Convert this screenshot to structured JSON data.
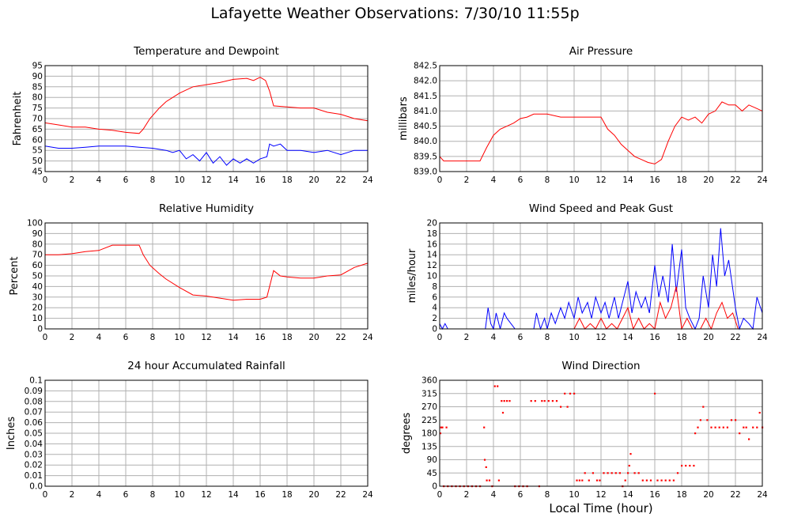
{
  "page": {
    "title": "Lafayette Weather Observations: 7/30/10 11:55p",
    "x_axis_title": "Local Time (hour)"
  },
  "colors": {
    "series_a": "#ff0000",
    "series_b": "#0000ff",
    "grid": "#b0b0b0",
    "frame": "#000000"
  },
  "chart_data": [
    {
      "type": "line",
      "title": "Temperature and Dewpoint",
      "ylabel": "Fahrenheit",
      "xlim": [
        0,
        24
      ],
      "ylim": [
        45,
        95
      ],
      "x_ticks": [
        "0",
        "2",
        "4",
        "6",
        "8",
        "10",
        "12",
        "14",
        "16",
        "18",
        "20",
        "22",
        "24"
      ],
      "y_ticks": [
        "45",
        "50",
        "55",
        "60",
        "65",
        "70",
        "75",
        "80",
        "85",
        "90",
        "95"
      ],
      "grid": true,
      "series": [
        {
          "color": "#ff0000",
          "x": [
            0,
            1,
            2,
            3,
            4,
            5,
            6,
            7,
            7.3,
            7.8,
            8.5,
            9,
            10,
            11,
            12,
            13,
            14,
            15,
            15.5,
            16,
            16.4,
            16.7,
            17,
            18,
            19,
            20,
            21,
            22,
            23,
            24
          ],
          "y": [
            68,
            67,
            66,
            66,
            65,
            64.5,
            63.5,
            63,
            65,
            70,
            75,
            78,
            82,
            85,
            86,
            87,
            88.5,
            89,
            88,
            89.5,
            88,
            83,
            76,
            75.5,
            75,
            75,
            73,
            72,
            70,
            69
          ]
        },
        {
          "color": "#0000ff",
          "x": [
            0,
            1,
            2,
            3,
            4,
            5,
            6,
            7,
            8,
            9,
            9.5,
            10,
            10.5,
            11,
            11.5,
            12,
            12.5,
            13,
            13.5,
            14,
            14.5,
            15,
            15.5,
            16,
            16.5,
            16.7,
            17,
            17.5,
            18,
            19,
            20,
            21,
            22,
            23,
            24
          ],
          "y": [
            57,
            56,
            56,
            56.5,
            57,
            57,
            57,
            56.5,
            56,
            55,
            54,
            55,
            51,
            53,
            50,
            54,
            49,
            52,
            48,
            51,
            49,
            51,
            49,
            51,
            52,
            58,
            57,
            58,
            55,
            55,
            54,
            55,
            53,
            55,
            55
          ]
        }
      ]
    },
    {
      "type": "line",
      "title": "Air Pressure",
      "ylabel": "millibars",
      "xlim": [
        0,
        24
      ],
      "ylim": [
        839.0,
        842.5
      ],
      "x_ticks": [
        "0",
        "2",
        "4",
        "6",
        "8",
        "10",
        "12",
        "14",
        "16",
        "18",
        "20",
        "22",
        "24"
      ],
      "y_ticks": [
        "839.0",
        "839.5",
        "840.0",
        "840.5",
        "841.0",
        "841.5",
        "842.0",
        "842.5"
      ],
      "grid": true,
      "series": [
        {
          "color": "#ff0000",
          "x": [
            0,
            0.3,
            1,
            2,
            3,
            3.5,
            4,
            4.5,
            5,
            5.5,
            6,
            6.5,
            7,
            8,
            9,
            10,
            11,
            12,
            12.5,
            13,
            13.5,
            14,
            14.5,
            15,
            15.5,
            16,
            16.5,
            17,
            17.5,
            18,
            18.5,
            19,
            19.5,
            20,
            20.5,
            21,
            21.5,
            22,
            22.5,
            23,
            23.5,
            24
          ],
          "y": [
            839.5,
            839.35,
            839.35,
            839.35,
            839.35,
            839.8,
            840.2,
            840.4,
            840.5,
            840.6,
            840.75,
            840.8,
            840.9,
            840.9,
            840.8,
            840.8,
            840.8,
            840.8,
            840.4,
            840.2,
            839.9,
            839.7,
            839.5,
            839.4,
            839.3,
            839.25,
            839.4,
            840.0,
            840.5,
            840.8,
            840.7,
            840.8,
            840.6,
            840.9,
            841.0,
            841.3,
            841.2,
            841.2,
            841.0,
            841.2,
            841.1,
            841.0
          ]
        }
      ]
    },
    {
      "type": "line",
      "title": "Relative Humidity",
      "ylabel": "Percent",
      "xlim": [
        0,
        24
      ],
      "ylim": [
        0,
        100
      ],
      "x_ticks": [
        "0",
        "2",
        "4",
        "6",
        "8",
        "10",
        "12",
        "14",
        "16",
        "18",
        "20",
        "22",
        "24"
      ],
      "y_ticks": [
        "0",
        "10",
        "20",
        "30",
        "40",
        "50",
        "60",
        "70",
        "80",
        "90",
        "100"
      ],
      "grid": true,
      "series": [
        {
          "color": "#ff0000",
          "x": [
            0,
            1,
            2,
            3,
            4,
            5,
            6,
            7,
            7.3,
            7.8,
            8.5,
            9,
            10,
            11,
            12,
            13,
            14,
            15,
            16,
            16.5,
            16.8,
            17,
            17.5,
            18,
            19,
            20,
            21,
            22,
            23,
            24
          ],
          "y": [
            70,
            70,
            71,
            73,
            74,
            79,
            79,
            79,
            70,
            60,
            52,
            47,
            39,
            32,
            31,
            29,
            27,
            28,
            28,
            30,
            45,
            55,
            50,
            49,
            48,
            48,
            50,
            51,
            58,
            62
          ]
        }
      ]
    },
    {
      "type": "line",
      "title": "Wind Speed and Peak Gust",
      "ylabel": "miles/hour",
      "xlim": [
        0,
        24
      ],
      "ylim": [
        0,
        20
      ],
      "x_ticks": [
        "0",
        "2",
        "4",
        "6",
        "8",
        "10",
        "12",
        "14",
        "16",
        "18",
        "20",
        "22",
        "24"
      ],
      "y_ticks": [
        "0",
        "2",
        "4",
        "6",
        "8",
        "10",
        "12",
        "14",
        "16",
        "18",
        "20"
      ],
      "grid": true,
      "series": [
        {
          "color": "#0000ff",
          "x": [
            0,
            0.2,
            0.4,
            0.6,
            1,
            2,
            3,
            3.4,
            3.6,
            3.8,
            4,
            4.2,
            4.5,
            4.8,
            5,
            5.3,
            5.6,
            6,
            7,
            7.2,
            7.5,
            7.8,
            8,
            8.3,
            8.6,
            9,
            9.3,
            9.6,
            10,
            10.3,
            10.6,
            11,
            11.3,
            11.6,
            12,
            12.3,
            12.6,
            13,
            13.3,
            13.6,
            14,
            14.3,
            14.6,
            15,
            15.3,
            15.6,
            16,
            16.3,
            16.6,
            17,
            17.3,
            17.6,
            18,
            18.3,
            18.6,
            19,
            19.3,
            19.6,
            20,
            20.3,
            20.6,
            20.9,
            21.2,
            21.5,
            22,
            22.3,
            22.6,
            23,
            23.3,
            23.6,
            24
          ],
          "y": [
            1,
            0,
            1,
            0,
            0,
            0,
            0,
            0,
            4,
            1,
            0,
            3,
            0,
            3,
            2,
            1,
            0,
            0,
            0,
            3,
            0,
            2,
            0,
            3,
            1,
            4,
            2,
            5,
            2,
            6,
            3,
            5,
            2,
            6,
            3,
            5,
            2,
            6,
            2,
            5,
            9,
            3,
            7,
            4,
            6,
            3,
            12,
            6,
            10,
            5,
            16,
            7,
            15,
            4,
            2,
            0,
            2,
            10,
            4,
            14,
            8,
            19,
            10,
            13,
            4,
            0,
            2,
            1,
            0,
            6,
            3
          ]
        },
        {
          "color": "#ff0000",
          "x": [
            0,
            9,
            10,
            10.4,
            10.8,
            11.2,
            11.6,
            12,
            12.4,
            12.8,
            13.2,
            13.6,
            14,
            14.4,
            14.8,
            15.2,
            15.6,
            16,
            16.4,
            16.8,
            17.2,
            17.6,
            18,
            18.4,
            18.8,
            19,
            19.4,
            19.8,
            20.2,
            20.6,
            21,
            21.4,
            21.8,
            22.2,
            22.6,
            24
          ],
          "y": [
            0,
            0,
            0,
            2,
            0,
            1,
            0,
            2,
            0,
            1,
            0,
            2,
            4,
            0,
            2,
            0,
            1,
            0,
            5,
            2,
            4,
            8,
            0,
            2,
            0,
            0,
            0,
            2,
            0,
            3,
            5,
            2,
            3,
            0,
            0,
            0
          ]
        }
      ]
    },
    {
      "type": "line",
      "title": "24 hour Accumulated Rainfall",
      "ylabel": "Inches",
      "xlim": [
        0,
        24
      ],
      "ylim": [
        0,
        0.1
      ],
      "x_ticks": [
        "0",
        "2",
        "4",
        "6",
        "8",
        "10",
        "12",
        "14",
        "16",
        "18",
        "20",
        "22",
        "24"
      ],
      "y_ticks": [
        "0.0",
        "0.01",
        "0.02",
        "0.03",
        "0.04",
        "0.05",
        "0.06",
        "0.07",
        "0.08",
        "0.09",
        "0.1"
      ],
      "grid": true,
      "series": [
        {
          "color": "#ff0000",
          "x": [
            0,
            24
          ],
          "y": [
            0,
            0
          ]
        }
      ]
    },
    {
      "type": "scatter",
      "title": "Wind Direction",
      "ylabel": "degrees",
      "xlim": [
        0,
        24
      ],
      "ylim": [
        0,
        360
      ],
      "x_ticks": [
        "0",
        "2",
        "4",
        "6",
        "8",
        "10",
        "12",
        "14",
        "16",
        "18",
        "20",
        "22",
        "24"
      ],
      "y_ticks": [
        "0",
        "45",
        "90",
        "135",
        "180",
        "225",
        "270",
        "315",
        "360"
      ],
      "grid": true,
      "series": [
        {
          "color": "#ff0000",
          "x": [
            0.05,
            0.1,
            0.2,
            0.5,
            0.3,
            0.6,
            0.9,
            1.2,
            1.5,
            1.8,
            2.1,
            2.4,
            2.7,
            3.0,
            3.3,
            3.35,
            3.45,
            3.5,
            3.7,
            3.9,
            4.1,
            4.3,
            4.4,
            4.6,
            4.7,
            4.8,
            5.0,
            5.2,
            5.6,
            5.9,
            6.2,
            6.5,
            6.8,
            7.1,
            7.4,
            7.6,
            7.8,
            8.1,
            8.4,
            8.7,
            9.0,
            9.3,
            9.5,
            9.7,
            10.0,
            10.2,
            10.4,
            10.6,
            10.8,
            11.1,
            11.4,
            11.7,
            11.9,
            12.2,
            12.5,
            12.8,
            13.1,
            13.4,
            13.6,
            13.8,
            14.0,
            14.1,
            14.2,
            14.5,
            14.8,
            15.1,
            15.4,
            15.7,
            16.0,
            16.2,
            16.5,
            16.8,
            17.1,
            17.4,
            17.7,
            18.0,
            18.3,
            18.6,
            18.9,
            19.0,
            19.2,
            19.4,
            19.6,
            19.9,
            20.2,
            20.5,
            20.8,
            21.1,
            21.4,
            21.7,
            22.0,
            22.3,
            22.6,
            22.8,
            23.0,
            23.3,
            23.6,
            23.8,
            24.0
          ],
          "y": [
            180,
            200,
            200,
            200,
            0,
            0,
            0,
            0,
            0,
            0,
            0,
            0,
            0,
            0,
            200,
            90,
            65,
            20,
            20,
            0,
            340,
            340,
            20,
            290,
            250,
            290,
            290,
            290,
            0,
            0,
            0,
            0,
            290,
            290,
            0,
            290,
            290,
            290,
            290,
            290,
            270,
            315,
            270,
            315,
            315,
            20,
            20,
            20,
            45,
            20,
            45,
            20,
            20,
            45,
            45,
            45,
            45,
            45,
            0,
            20,
            45,
            70,
            110,
            45,
            45,
            20,
            20,
            20,
            315,
            20,
            20,
            20,
            20,
            20,
            45,
            70,
            70,
            70,
            70,
            180,
            200,
            225,
            270,
            225,
            200,
            200,
            200,
            200,
            200,
            225,
            225,
            180,
            200,
            200,
            160,
            200,
            200,
            250,
            200
          ]
        }
      ]
    }
  ]
}
